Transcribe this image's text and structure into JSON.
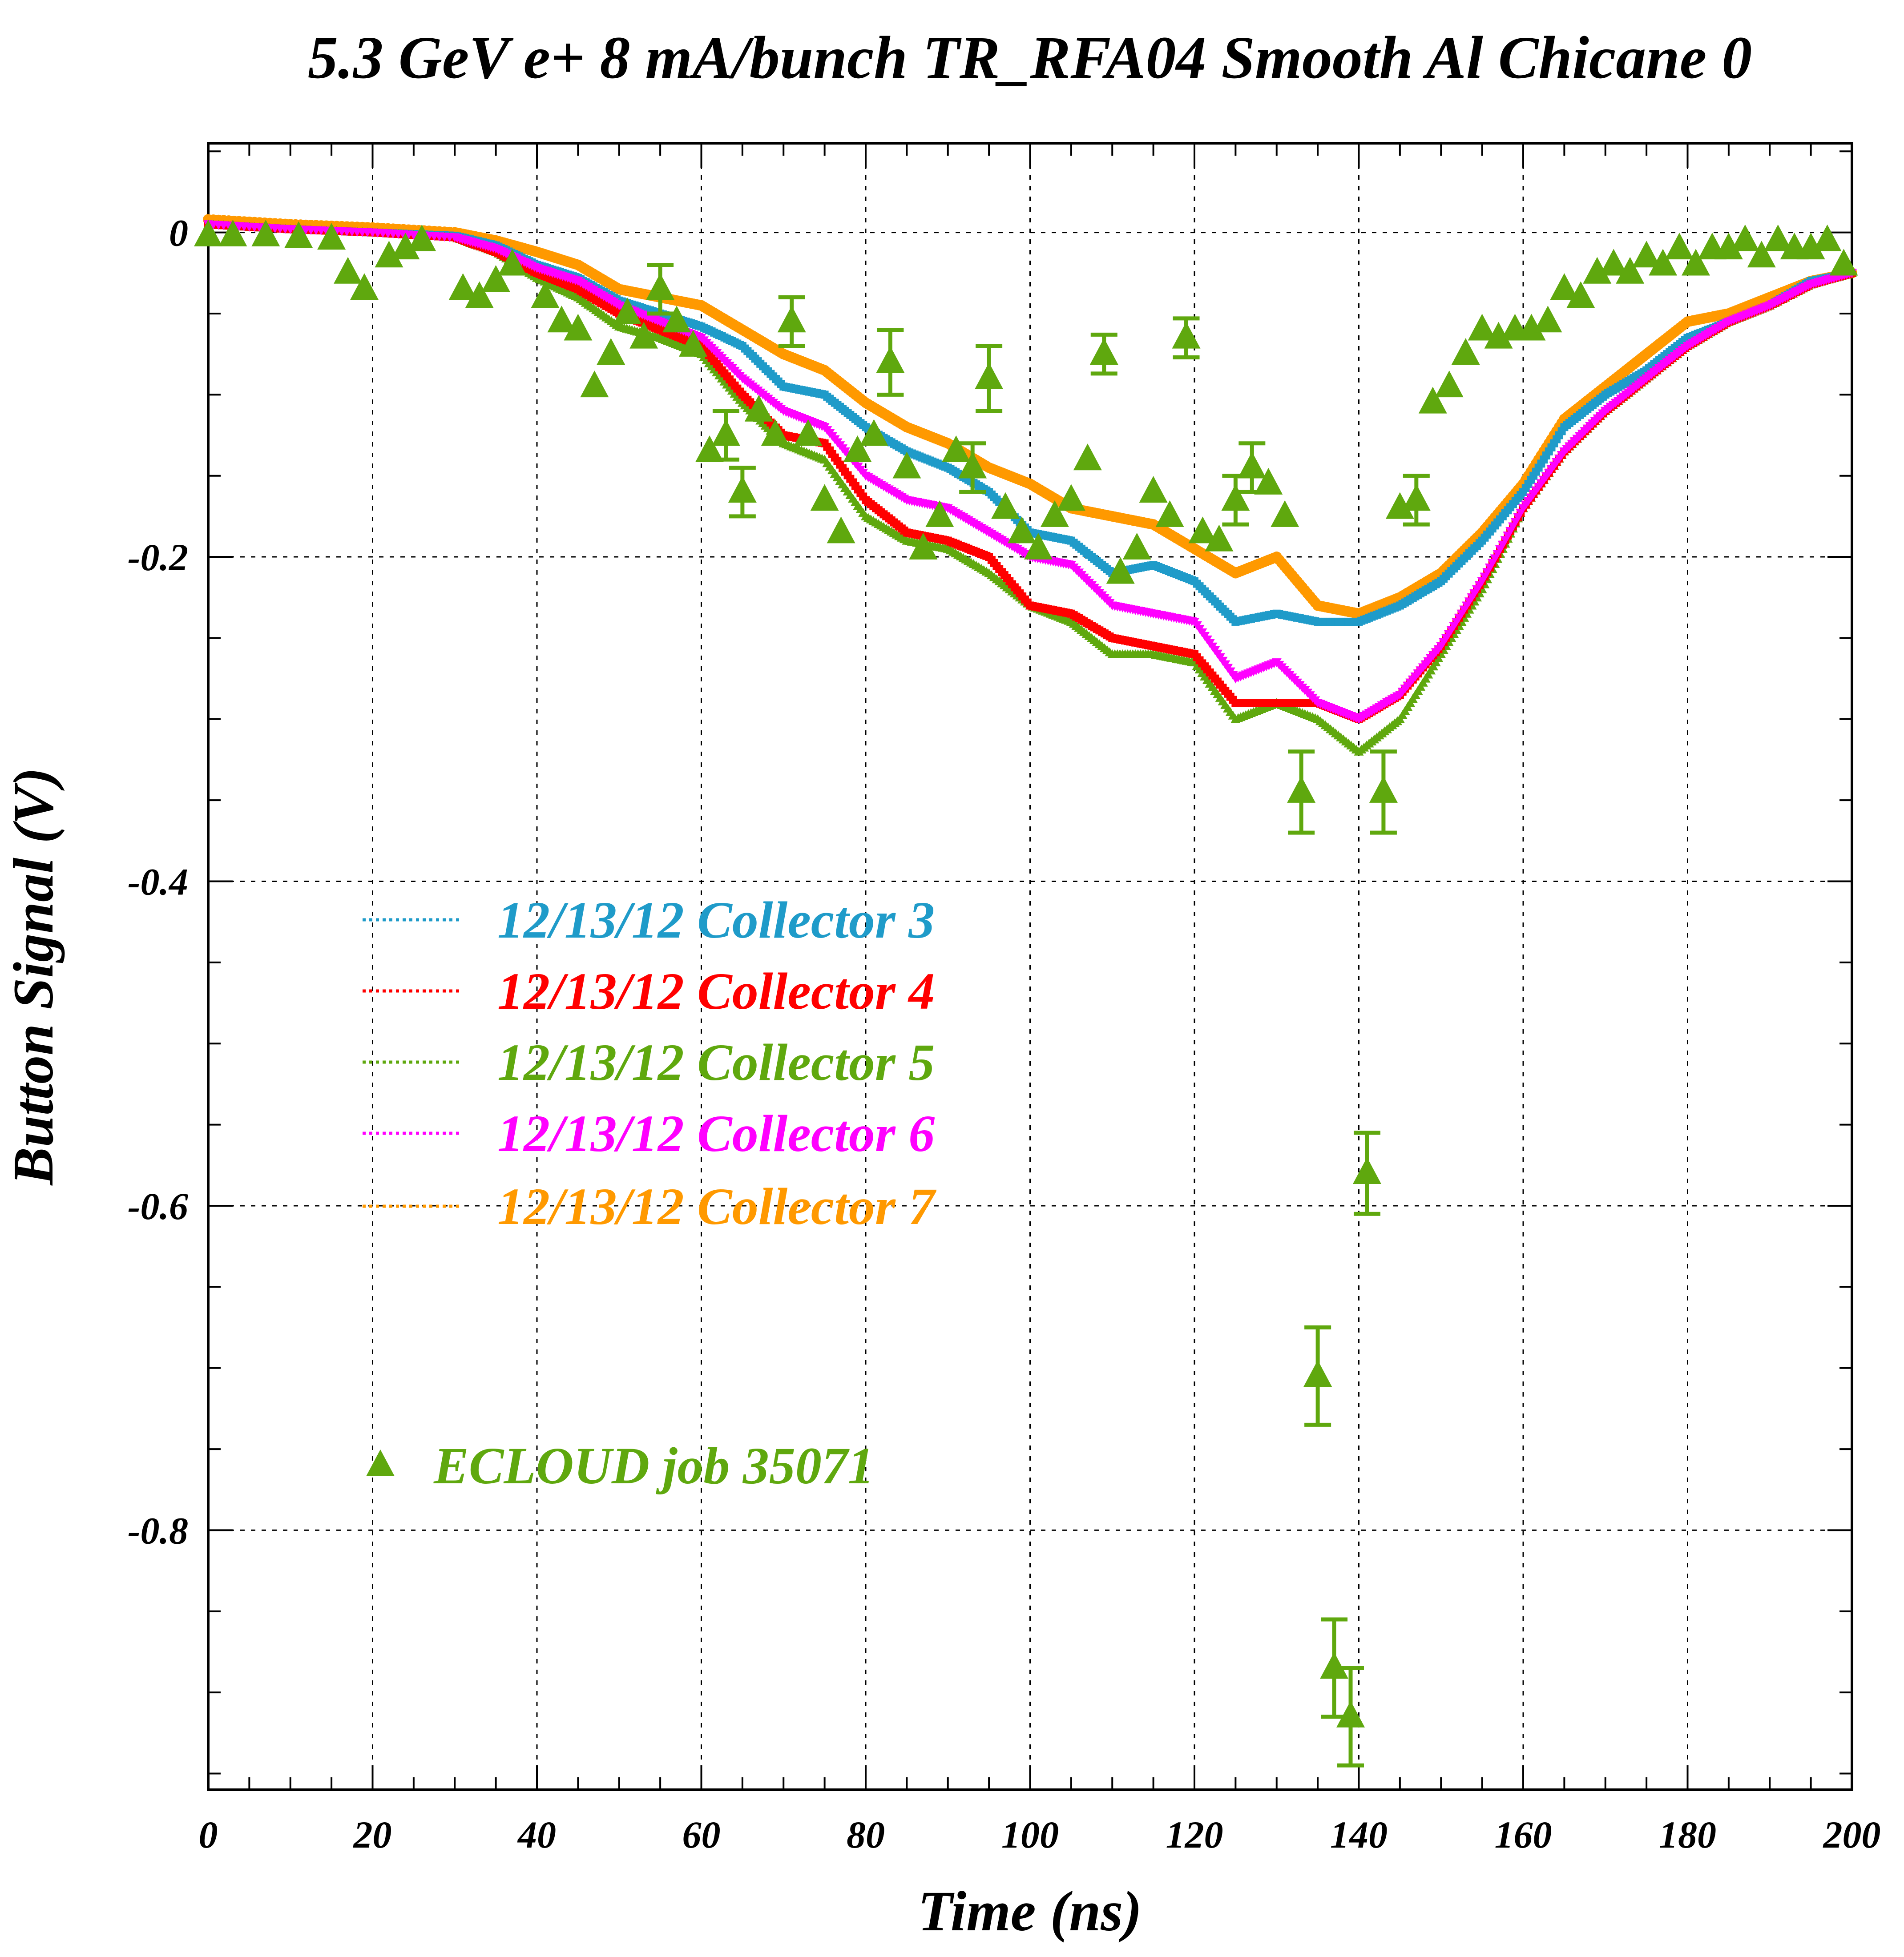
{
  "chart_data": {
    "type": "scatter",
    "title": "5.3 GeV e+ 8 mA/bunch  TR_RFA04 Smooth Al Chicane 0",
    "xlabel": "Time (ns)",
    "ylabel": "Button Signal (V)",
    "xlim": [
      0,
      200
    ],
    "ylim": [
      -0.96,
      0.055
    ],
    "grid": true,
    "legend_placement": "left-center",
    "x_ticks": [
      "0",
      "20",
      "40",
      "60",
      "80",
      "100",
      "120",
      "140",
      "160",
      "180",
      "200"
    ],
    "y_ticks": [
      "0",
      "-0.2",
      "-0.4",
      "-0.6",
      "-0.8"
    ],
    "y_tick_values": [
      0,
      -0.2,
      -0.4,
      -0.6,
      -0.8
    ],
    "x_tick_values": [
      0,
      20,
      40,
      60,
      80,
      100,
      120,
      140,
      160,
      180,
      200
    ],
    "series": [
      {
        "name": "12/13/12 Collector 3",
        "color": "#1f9bc9",
        "marker": "square",
        "x": [
          0,
          10,
          20,
          30,
          35,
          40,
          45,
          50,
          55,
          60,
          65,
          70,
          75,
          80,
          85,
          90,
          95,
          100,
          105,
          110,
          115,
          120,
          125,
          130,
          135,
          140,
          145,
          150,
          155,
          160,
          165,
          170,
          175,
          180,
          185,
          190,
          195,
          200
        ],
        "y": [
          0.005,
          0.002,
          0.0,
          -0.002,
          -0.008,
          -0.02,
          -0.028,
          -0.042,
          -0.05,
          -0.058,
          -0.07,
          -0.095,
          -0.1,
          -0.12,
          -0.135,
          -0.145,
          -0.16,
          -0.185,
          -0.19,
          -0.21,
          -0.205,
          -0.215,
          -0.24,
          -0.235,
          -0.24,
          -0.24,
          -0.23,
          -0.215,
          -0.19,
          -0.16,
          -0.12,
          -0.1,
          -0.085,
          -0.065,
          -0.055,
          -0.045,
          -0.03,
          -0.025
        ]
      },
      {
        "name": "12/13/12 Collector 4",
        "color": "#ff0000",
        "marker": "square",
        "x": [
          0,
          10,
          20,
          30,
          35,
          40,
          45,
          50,
          55,
          60,
          65,
          70,
          75,
          80,
          85,
          90,
          95,
          100,
          105,
          110,
          115,
          120,
          125,
          130,
          135,
          140,
          145,
          150,
          155,
          160,
          165,
          170,
          175,
          180,
          185,
          190,
          195,
          200
        ],
        "y": [
          0.005,
          0.002,
          0.0,
          -0.003,
          -0.012,
          -0.025,
          -0.035,
          -0.05,
          -0.06,
          -0.07,
          -0.1,
          -0.125,
          -0.13,
          -0.165,
          -0.185,
          -0.19,
          -0.2,
          -0.23,
          -0.235,
          -0.25,
          -0.255,
          -0.26,
          -0.29,
          -0.29,
          -0.29,
          -0.3,
          -0.285,
          -0.255,
          -0.215,
          -0.17,
          -0.135,
          -0.11,
          -0.09,
          -0.07,
          -0.055,
          -0.045,
          -0.032,
          -0.025
        ]
      },
      {
        "name": "12/13/12 Collector 5",
        "color": "#5fa80e",
        "marker": "triangle-small",
        "x": [
          0,
          10,
          20,
          30,
          35,
          40,
          45,
          50,
          55,
          60,
          65,
          70,
          75,
          80,
          85,
          90,
          95,
          100,
          105,
          110,
          115,
          120,
          125,
          130,
          135,
          140,
          145,
          150,
          155,
          160,
          165,
          170,
          175,
          180,
          185,
          190,
          195,
          200
        ],
        "y": [
          0.005,
          0.002,
          0.0,
          -0.003,
          -0.012,
          -0.028,
          -0.04,
          -0.058,
          -0.065,
          -0.075,
          -0.105,
          -0.13,
          -0.14,
          -0.175,
          -0.19,
          -0.195,
          -0.21,
          -0.23,
          -0.24,
          -0.26,
          -0.26,
          -0.265,
          -0.3,
          -0.29,
          -0.3,
          -0.32,
          -0.3,
          -0.26,
          -0.22,
          -0.17,
          -0.135,
          -0.11,
          -0.09,
          -0.07,
          -0.055,
          -0.045,
          -0.032,
          -0.025
        ]
      },
      {
        "name": "12/13/12 Collector 6",
        "color": "#ff00ff",
        "marker": "triangle-down",
        "x": [
          0,
          10,
          20,
          30,
          35,
          40,
          45,
          50,
          55,
          60,
          65,
          70,
          75,
          80,
          85,
          90,
          95,
          100,
          105,
          110,
          115,
          120,
          125,
          130,
          135,
          140,
          145,
          150,
          155,
          160,
          165,
          170,
          175,
          180,
          185,
          190,
          195,
          200
        ],
        "y": [
          0.005,
          0.002,
          0.0,
          -0.003,
          -0.01,
          -0.022,
          -0.03,
          -0.045,
          -0.055,
          -0.065,
          -0.09,
          -0.11,
          -0.12,
          -0.15,
          -0.165,
          -0.17,
          -0.185,
          -0.2,
          -0.205,
          -0.23,
          -0.235,
          -0.24,
          -0.275,
          -0.265,
          -0.29,
          -0.3,
          -0.285,
          -0.255,
          -0.215,
          -0.17,
          -0.135,
          -0.11,
          -0.09,
          -0.07,
          -0.055,
          -0.045,
          -0.032,
          -0.025
        ]
      },
      {
        "name": "12/13/12 Collector 7",
        "color": "#ff9900",
        "marker": "circle",
        "x": [
          0,
          10,
          20,
          30,
          35,
          40,
          45,
          50,
          55,
          60,
          65,
          70,
          75,
          80,
          85,
          90,
          95,
          100,
          105,
          110,
          115,
          120,
          125,
          130,
          135,
          140,
          145,
          150,
          155,
          160,
          165,
          170,
          175,
          180,
          185,
          190,
          195,
          200
        ],
        "y": [
          0.008,
          0.005,
          0.003,
          0.0,
          -0.005,
          -0.012,
          -0.02,
          -0.035,
          -0.04,
          -0.045,
          -0.06,
          -0.075,
          -0.085,
          -0.105,
          -0.12,
          -0.13,
          -0.145,
          -0.155,
          -0.17,
          -0.175,
          -0.18,
          -0.195,
          -0.21,
          -0.2,
          -0.23,
          -0.235,
          -0.225,
          -0.21,
          -0.185,
          -0.155,
          -0.115,
          -0.095,
          -0.075,
          -0.055,
          -0.05,
          -0.04,
          -0.03,
          -0.025
        ]
      },
      {
        "name": "ECLOUD job 35071",
        "color": "#5fa80e",
        "marker": "triangle-large",
        "x": [
          0,
          3,
          7,
          11,
          15,
          17,
          19,
          22,
          24,
          26,
          31,
          33,
          35,
          37,
          41,
          43,
          45,
          47,
          49,
          51,
          53,
          55,
          57,
          59,
          61,
          63,
          65,
          67,
          69,
          71,
          73,
          75,
          77,
          79,
          81,
          83,
          85,
          87,
          89,
          91,
          93,
          95,
          97,
          99,
          101,
          103,
          105,
          107,
          109,
          111,
          113,
          115,
          117,
          119,
          121,
          123,
          125,
          127,
          129,
          131,
          133,
          135,
          137,
          139,
          141,
          143,
          145,
          147,
          149,
          151,
          153,
          155,
          157,
          159,
          161,
          163,
          165,
          167,
          169,
          171,
          173,
          175,
          177,
          179,
          181,
          183,
          185,
          187,
          189,
          191,
          193,
          195,
          197,
          199
        ],
        "y": [
          -0.002,
          -0.002,
          -0.002,
          -0.003,
          -0.004,
          -0.025,
          -0.035,
          -0.015,
          -0.01,
          -0.005,
          -0.035,
          -0.04,
          -0.03,
          -0.02,
          -0.04,
          -0.055,
          -0.06,
          -0.095,
          -0.075,
          -0.05,
          -0.065,
          -0.035,
          -0.055,
          -0.07,
          -0.135,
          -0.125,
          -0.16,
          -0.11,
          -0.125,
          -0.055,
          -0.125,
          -0.165,
          -0.185,
          -0.135,
          -0.125,
          -0.08,
          -0.145,
          -0.195,
          -0.175,
          -0.135,
          -0.145,
          -0.09,
          -0.17,
          -0.185,
          -0.195,
          -0.175,
          -0.165,
          -0.14,
          -0.075,
          -0.21,
          -0.195,
          -0.16,
          -0.175,
          -0.065,
          -0.185,
          -0.19,
          -0.165,
          -0.145,
          -0.155,
          -0.175,
          -0.345,
          -0.705,
          -0.885,
          -0.915,
          -0.58,
          -0.345,
          -0.17,
          -0.165,
          -0.105,
          -0.095,
          -0.075,
          -0.06,
          -0.065,
          -0.06,
          -0.06,
          -0.055,
          -0.035,
          -0.04,
          -0.025,
          -0.02,
          -0.025,
          -0.015,
          -0.02,
          -0.01,
          -0.02,
          -0.01,
          -0.01,
          -0.005,
          -0.015,
          -0.005,
          -0.01,
          -0.01,
          -0.005,
          -0.02
        ],
        "err": [
          0,
          0,
          0,
          0,
          0,
          0,
          0,
          0,
          0,
          0,
          0,
          0,
          0,
          0,
          0,
          0,
          0,
          0,
          0,
          0,
          0,
          0.015,
          0,
          0,
          0,
          0.015,
          0.015,
          0,
          0,
          0.015,
          0,
          0,
          0,
          0,
          0,
          0.02,
          0,
          0,
          0,
          0,
          0.015,
          0.02,
          0,
          0,
          0,
          0,
          0,
          0,
          0.012,
          0,
          0,
          0,
          0,
          0.012,
          0,
          0,
          0.015,
          0.015,
          0,
          0,
          0.025,
          0.03,
          0.03,
          0.03,
          0.025,
          0.025,
          0,
          0.015,
          0,
          0,
          0,
          0,
          0,
          0,
          0,
          0,
          0,
          0,
          0,
          0,
          0,
          0,
          0,
          0,
          0,
          0,
          0,
          0,
          0,
          0,
          0,
          0,
          0,
          0
        ]
      }
    ]
  }
}
